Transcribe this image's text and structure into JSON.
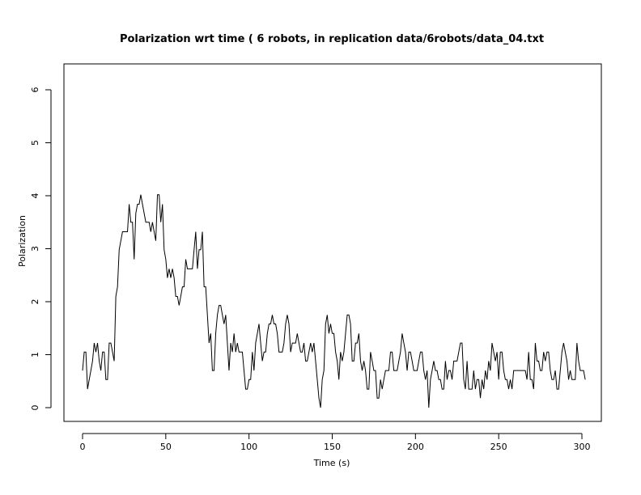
{
  "chart_data": {
    "type": "line",
    "title": "Polarization wrt time ( 6 robots, in replication  data/6robots/data_04.txt",
    "xlabel": "Time (s)",
    "ylabel": "Polarization",
    "xlim": [
      0,
      300
    ],
    "ylim": [
      0,
      6
    ],
    "xticks": [
      "0",
      "50",
      "100",
      "150",
      "200",
      "250",
      "300"
    ],
    "yticks": [
      "0",
      "1",
      "2",
      "3",
      "4",
      "5",
      "6"
    ],
    "grid": false,
    "series": [
      {
        "values": [
          0.7,
          1.05,
          1.05,
          0.35,
          0.53,
          0.7,
          0.88,
          1.22,
          1.05,
          1.22,
          0.88,
          0.7,
          1.05,
          1.05,
          0.53,
          0.53,
          1.22,
          1.22,
          1.05,
          0.88,
          2.1,
          2.28,
          2.98,
          3.15,
          3.32,
          3.32,
          3.32,
          3.32,
          3.84,
          3.5,
          3.5,
          2.8,
          3.67,
          3.84,
          3.84,
          4.02,
          3.84,
          3.67,
          3.5,
          3.5,
          3.5,
          3.32,
          3.5,
          3.32,
          3.15,
          4.02,
          4.02,
          3.5,
          3.84,
          2.98,
          2.8,
          2.45,
          2.62,
          2.45,
          2.62,
          2.45,
          2.1,
          2.1,
          1.93,
          2.1,
          2.28,
          2.28,
          2.8,
          2.62,
          2.62,
          2.62,
          2.62,
          2.98,
          3.32,
          2.62,
          2.98,
          2.98,
          3.32,
          2.28,
          2.28,
          1.75,
          1.22,
          1.4,
          0.7,
          0.7,
          1.4,
          1.75,
          1.93,
          1.93,
          1.75,
          1.58,
          1.75,
          1.22,
          0.7,
          1.22,
          1.05,
          1.4,
          1.05,
          1.22,
          1.05,
          1.05,
          1.05,
          0.7,
          0.35,
          0.35,
          0.53,
          0.53,
          1.05,
          0.7,
          1.22,
          1.4,
          1.58,
          1.22,
          0.88,
          1.05,
          1.05,
          1.4,
          1.58,
          1.58,
          1.75,
          1.58,
          1.58,
          1.4,
          1.05,
          1.05,
          1.05,
          1.22,
          1.58,
          1.75,
          1.58,
          1.05,
          1.22,
          1.22,
          1.22,
          1.4,
          1.22,
          1.05,
          1.05,
          1.22,
          0.88,
          0.88,
          1.05,
          1.22,
          1.05,
          1.22,
          0.88,
          0.53,
          0.18,
          0.0,
          0.53,
          0.7,
          1.58,
          1.75,
          1.4,
          1.58,
          1.4,
          1.4,
          1.05,
          0.88,
          0.53,
          1.05,
          0.88,
          1.05,
          1.4,
          1.75,
          1.75,
          1.58,
          0.88,
          0.88,
          1.22,
          1.22,
          1.4,
          0.88,
          0.7,
          0.88,
          0.7,
          0.35,
          0.35,
          1.05,
          0.88,
          0.7,
          0.7,
          0.18,
          0.18,
          0.53,
          0.35,
          0.53,
          0.7,
          0.7,
          0.7,
          1.05,
          1.05,
          0.7,
          0.7,
          0.7,
          0.88,
          1.05,
          1.4,
          1.22,
          1.05,
          0.7,
          1.05,
          1.05,
          0.88,
          0.7,
          0.7,
          0.7,
          0.88,
          1.05,
          1.05,
          0.7,
          0.53,
          0.7,
          0.0,
          0.53,
          0.7,
          0.88,
          0.7,
          0.7,
          0.53,
          0.53,
          0.35,
          0.35,
          0.88,
          0.53,
          0.7,
          0.7,
          0.53,
          0.88,
          0.88,
          0.88,
          1.05,
          1.22,
          1.22,
          0.53,
          0.35,
          0.88,
          0.35,
          0.35,
          0.35,
          0.7,
          0.35,
          0.53,
          0.53,
          0.18,
          0.53,
          0.35,
          0.7,
          0.53,
          0.88,
          0.7,
          1.22,
          1.05,
          0.88,
          1.05,
          0.53,
          1.05,
          1.05,
          0.7,
          0.53,
          0.53,
          0.35,
          0.53,
          0.35,
          0.7,
          0.7,
          0.7,
          0.7,
          0.7,
          0.7,
          0.7,
          0.7,
          0.53,
          1.05,
          0.53,
          0.53,
          0.35,
          1.22,
          0.88,
          0.88,
          0.7,
          0.7,
          1.05,
          0.88,
          1.05,
          1.05,
          0.7,
          0.53,
          0.53,
          0.7,
          0.35,
          0.35,
          0.7,
          1.05,
          1.22,
          1.05,
          0.88,
          0.53,
          0.7,
          0.53,
          0.53,
          0.53,
          1.22,
          0.88,
          0.7,
          0.7,
          0.7,
          0.53
        ]
      }
    ]
  }
}
